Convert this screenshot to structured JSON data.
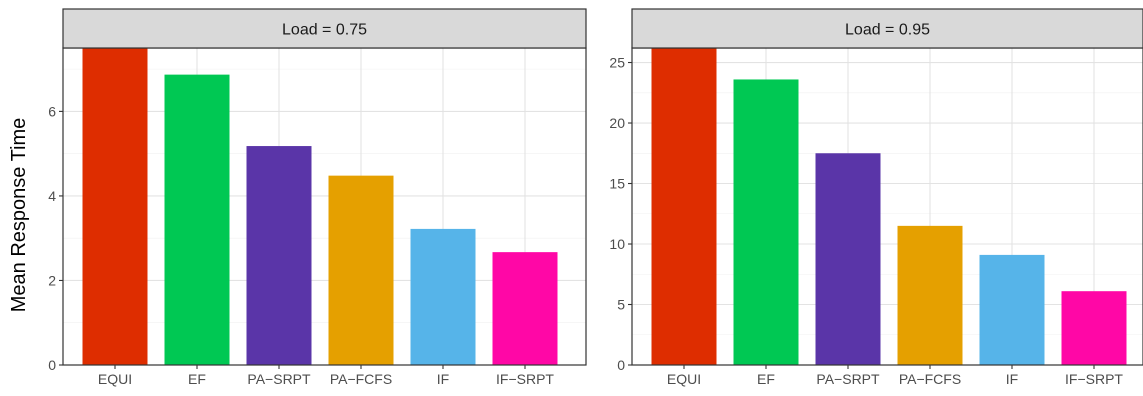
{
  "chart_data": {
    "type": "bar",
    "ylabel": "Mean Response Time",
    "xlabel": "",
    "categories": [
      "EQUI",
      "EF",
      "PA−SRPT",
      "PA−FCFS",
      "IF",
      "IF−SRPT"
    ],
    "colors": [
      "#DE2D00",
      "#00C853",
      "#5A35A8",
      "#E5A000",
      "#56B4E9",
      "#FF07A6"
    ],
    "grid": true,
    "panels": [
      {
        "title": "Load = 0.75",
        "values": [
          7.5,
          6.87,
          5.18,
          4.48,
          3.22,
          2.67
        ],
        "ylim": [
          0,
          7.5
        ],
        "yticks": [
          0,
          2,
          4,
          6
        ]
      },
      {
        "title": "Load = 0.95",
        "values": [
          26.2,
          23.6,
          17.5,
          11.5,
          9.1,
          6.1
        ],
        "ylim": [
          0,
          26.2
        ],
        "yticks": [
          0,
          5,
          10,
          15,
          20,
          25
        ]
      }
    ]
  }
}
